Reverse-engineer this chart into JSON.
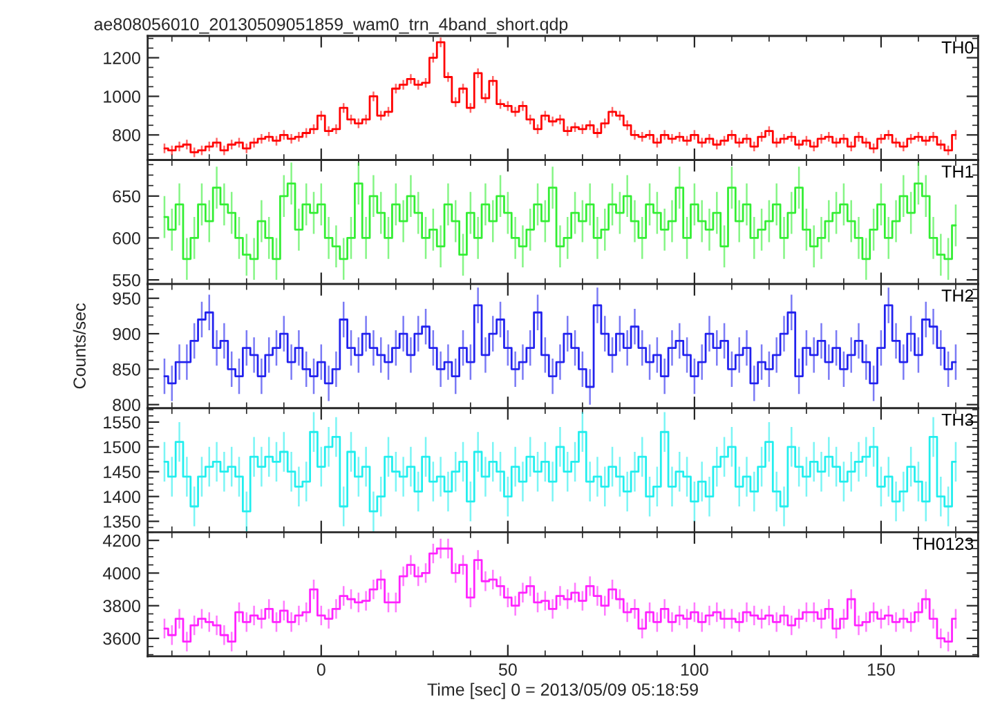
{
  "chart_data": [
    {
      "type": "step",
      "title": "ae808056010_20130509051859_wam0_trn_4band_short.qdp",
      "tick_labels": "y",
      "x": [
        -42,
        -40,
        -38,
        -36,
        -34,
        -32,
        -30,
        -28,
        -26,
        -24,
        -22,
        -20,
        -18,
        -16,
        -14,
        -12,
        -10,
        -8,
        -6,
        -4,
        -2,
        0,
        2,
        4,
        6,
        8,
        10,
        12,
        14,
        16,
        18,
        20,
        22,
        24,
        26,
        28,
        30,
        32,
        34,
        36,
        38,
        40,
        42,
        44,
        46,
        48,
        50,
        52,
        54,
        56,
        58,
        60,
        62,
        64,
        66,
        68,
        70,
        72,
        74,
        76,
        78,
        80,
        82,
        84,
        86,
        88,
        90,
        92,
        94,
        96,
        98,
        100,
        102,
        104,
        106,
        108,
        110,
        112,
        114,
        116,
        118,
        120,
        122,
        124,
        126,
        128,
        130,
        132,
        134,
        136,
        138,
        140,
        142,
        144,
        146,
        148,
        150,
        152,
        154,
        156,
        158,
        160,
        162,
        164,
        166,
        168,
        170
      ],
      "xlim": [
        -46.5,
        176
      ],
      "xticks": [
        0,
        50,
        100,
        150
      ],
      "ylim": [
        670,
        1313
      ],
      "yticks": [
        800,
        1000,
        1200
      ],
      "series": [
        {
          "name": "TH0",
          "color": "#ff0000",
          "values": [
            730,
            720,
            740,
            750,
            710,
            720,
            740,
            760,
            720,
            750,
            760,
            730,
            760,
            780,
            790,
            770,
            800,
            780,
            790,
            810,
            830,
            900,
            820,
            830,
            940,
            880,
            860,
            880,
            1000,
            900,
            920,
            1040,
            1060,
            1090,
            1060,
            1070,
            1200,
            1280,
            1100,
            970,
            1040,
            940,
            1120,
            990,
            1080,
            960,
            950,
            920,
            950,
            880,
            830,
            900,
            870,
            880,
            820,
            840,
            830,
            850,
            810,
            860,
            920,
            900,
            850,
            800,
            790,
            800,
            760,
            800,
            780,
            790,
            770,
            800,
            760,
            780,
            750,
            770,
            800,
            760,
            780,
            740,
            790,
            820,
            760,
            780,
            790,
            750,
            770,
            740,
            780,
            790,
            760,
            780,
            740,
            790,
            760,
            730,
            780,
            800,
            760,
            740,
            780,
            790,
            770,
            790,
            750,
            720,
            800
          ],
          "errors": [
            25,
            25,
            25,
            25,
            25,
            25,
            25,
            25,
            25,
            25,
            25,
            25,
            25,
            25,
            25,
            25,
            25,
            25,
            25,
            25,
            25,
            25,
            25,
            25,
            25,
            25,
            25,
            25,
            25,
            25,
            25,
            25,
            25,
            25,
            25,
            25,
            25,
            25,
            25,
            25,
            25,
            25,
            25,
            25,
            25,
            25,
            25,
            25,
            25,
            25,
            25,
            25,
            25,
            25,
            25,
            25,
            25,
            25,
            25,
            25,
            25,
            25,
            25,
            25,
            25,
            25,
            25,
            25,
            25,
            25,
            25,
            25,
            25,
            25,
            25,
            25,
            25,
            25,
            25,
            25,
            25,
            25,
            25,
            25,
            25,
            25,
            25,
            25,
            25,
            25,
            25,
            25,
            25,
            25,
            25,
            25,
            25,
            25,
            25,
            25,
            25,
            25,
            25,
            25,
            25,
            25,
            25
          ]
        }
      ]
    },
    {
      "type": "step",
      "tick_labels": "y",
      "x": [
        -42,
        -40,
        -38,
        -36,
        -34,
        -32,
        -30,
        -28,
        -26,
        -24,
        -22,
        -20,
        -18,
        -16,
        -14,
        -12,
        -10,
        -8,
        -6,
        -4,
        -2,
        0,
        2,
        4,
        6,
        8,
        10,
        12,
        14,
        16,
        18,
        20,
        22,
        24,
        26,
        28,
        30,
        32,
        34,
        36,
        38,
        40,
        42,
        44,
        46,
        48,
        50,
        52,
        54,
        56,
        58,
        60,
        62,
        64,
        66,
        68,
        70,
        72,
        74,
        76,
        78,
        80,
        82,
        84,
        86,
        88,
        90,
        92,
        94,
        96,
        98,
        100,
        102,
        104,
        106,
        108,
        110,
        112,
        114,
        116,
        118,
        120,
        122,
        124,
        126,
        128,
        130,
        132,
        134,
        136,
        138,
        140,
        142,
        144,
        146,
        148,
        150,
        152,
        154,
        156,
        158,
        160,
        162,
        164,
        166,
        168,
        170
      ],
      "xlim": [
        -46.5,
        176
      ],
      "xticks": [
        0,
        50,
        100,
        150
      ],
      "ylim": [
        545,
        693
      ],
      "yticks": [
        550,
        600,
        650
      ],
      "series": [
        {
          "name": "TH1",
          "color": "#33ee33",
          "values": [
            625,
            610,
            640,
            575,
            600,
            640,
            620,
            660,
            640,
            630,
            600,
            580,
            575,
            620,
            600,
            575,
            650,
            665,
            610,
            640,
            630,
            640,
            600,
            590,
            575,
            600,
            665,
            600,
            650,
            630,
            600,
            640,
            620,
            650,
            630,
            600,
            610,
            590,
            640,
            620,
            580,
            630,
            600,
            640,
            620,
            650,
            630,
            600,
            590,
            610,
            640,
            620,
            660,
            590,
            600,
            630,
            620,
            640,
            600,
            610,
            640,
            630,
            650,
            620,
            600,
            640,
            630,
            610,
            620,
            660,
            600,
            640,
            620,
            610,
            630,
            590,
            660,
            620,
            640,
            600,
            610,
            620,
            640,
            600,
            630,
            660,
            610,
            590,
            600,
            620,
            630,
            640,
            620,
            600,
            575,
            610,
            640,
            600,
            620,
            650,
            630,
            665,
            650,
            600,
            580,
            575,
            615
          ],
          "errors": [
            25,
            25,
            25,
            25,
            25,
            25,
            25,
            25,
            25,
            25,
            25,
            25,
            25,
            25,
            25,
            25,
            25,
            25,
            25,
            25,
            25,
            25,
            25,
            25,
            25,
            25,
            25,
            25,
            25,
            25,
            25,
            25,
            25,
            25,
            25,
            25,
            25,
            25,
            25,
            25,
            25,
            25,
            25,
            25,
            25,
            25,
            25,
            25,
            25,
            25,
            25,
            25,
            25,
            25,
            25,
            25,
            25,
            25,
            25,
            25,
            25,
            25,
            25,
            25,
            25,
            25,
            25,
            25,
            25,
            25,
            25,
            25,
            25,
            25,
            25,
            25,
            25,
            25,
            25,
            25,
            25,
            25,
            25,
            25,
            25,
            25,
            25,
            25,
            25,
            25,
            25,
            25,
            25,
            25,
            25,
            25,
            25,
            25,
            25,
            25,
            25,
            25,
            25,
            25,
            25,
            25,
            25
          ]
        }
      ]
    },
    {
      "type": "step",
      "tick_labels": "y",
      "ylabel": "Counts/sec",
      "x": [
        -42,
        -40,
        -38,
        -36,
        -34,
        -32,
        -30,
        -28,
        -26,
        -24,
        -22,
        -20,
        -18,
        -16,
        -14,
        -12,
        -10,
        -8,
        -6,
        -4,
        -2,
        0,
        2,
        4,
        6,
        8,
        10,
        12,
        14,
        16,
        18,
        20,
        22,
        24,
        26,
        28,
        30,
        32,
        34,
        36,
        38,
        40,
        42,
        44,
        46,
        48,
        50,
        52,
        54,
        56,
        58,
        60,
        62,
        64,
        66,
        68,
        70,
        72,
        74,
        76,
        78,
        80,
        82,
        84,
        86,
        88,
        90,
        92,
        94,
        96,
        98,
        100,
        102,
        104,
        106,
        108,
        110,
        112,
        114,
        116,
        118,
        120,
        122,
        124,
        126,
        128,
        130,
        132,
        134,
        136,
        138,
        140,
        142,
        144,
        146,
        148,
        150,
        152,
        154,
        156,
        158,
        160,
        162,
        164,
        166,
        168,
        170
      ],
      "xlim": [
        -46.5,
        176
      ],
      "xticks": [
        0,
        50,
        100,
        150
      ],
      "ylim": [
        795,
        970
      ],
      "yticks": [
        800,
        850,
        900,
        950
      ],
      "series": [
        {
          "name": "TH2",
          "color": "#2222ee",
          "values": [
            840,
            830,
            860,
            860,
            890,
            920,
            930,
            880,
            890,
            850,
            840,
            880,
            870,
            840,
            870,
            880,
            900,
            860,
            880,
            850,
            840,
            860,
            830,
            850,
            920,
            880,
            870,
            900,
            880,
            870,
            860,
            880,
            900,
            870,
            900,
            910,
            880,
            850,
            860,
            840,
            880,
            860,
            940,
            870,
            900,
            920,
            880,
            850,
            860,
            880,
            930,
            870,
            840,
            860,
            900,
            880,
            850,
            825,
            940,
            900,
            870,
            900,
            880,
            910,
            880,
            860,
            870,
            840,
            880,
            890,
            870,
            840,
            860,
            900,
            880,
            890,
            850,
            870,
            880,
            830,
            860,
            850,
            870,
            900,
            930,
            840,
            880,
            870,
            890,
            860,
            880,
            850,
            870,
            890,
            860,
            830,
            880,
            940,
            890,
            860,
            900,
            870,
            920,
            910,
            880,
            850,
            860
          ],
          "errors": [
            25,
            25,
            25,
            25,
            25,
            25,
            25,
            25,
            25,
            25,
            25,
            25,
            25,
            25,
            25,
            25,
            25,
            25,
            25,
            25,
            25,
            25,
            25,
            25,
            25,
            25,
            25,
            25,
            25,
            25,
            25,
            25,
            25,
            25,
            25,
            25,
            25,
            25,
            25,
            25,
            25,
            25,
            25,
            25,
            25,
            25,
            25,
            25,
            25,
            25,
            25,
            25,
            25,
            25,
            25,
            25,
            25,
            25,
            25,
            25,
            25,
            25,
            25,
            25,
            25,
            25,
            25,
            25,
            25,
            25,
            25,
            25,
            25,
            25,
            25,
            25,
            25,
            25,
            25,
            25,
            25,
            25,
            25,
            25,
            25,
            25,
            25,
            25,
            25,
            25,
            25,
            25,
            25,
            25,
            25,
            25,
            25,
            25,
            25,
            25,
            25,
            25,
            25,
            25,
            25,
            25,
            25
          ]
        }
      ]
    },
    {
      "type": "step",
      "tick_labels": "y",
      "x": [
        -42,
        -40,
        -38,
        -36,
        -34,
        -32,
        -30,
        -28,
        -26,
        -24,
        -22,
        -20,
        -18,
        -16,
        -14,
        -12,
        -10,
        -8,
        -6,
        -4,
        -2,
        0,
        2,
        4,
        6,
        8,
        10,
        12,
        14,
        16,
        18,
        20,
        22,
        24,
        26,
        28,
        30,
        32,
        34,
        36,
        38,
        40,
        42,
        44,
        46,
        48,
        50,
        52,
        54,
        56,
        58,
        60,
        62,
        64,
        66,
        68,
        70,
        72,
        74,
        76,
        78,
        80,
        82,
        84,
        86,
        88,
        90,
        92,
        94,
        96,
        98,
        100,
        102,
        104,
        106,
        108,
        110,
        112,
        114,
        116,
        118,
        120,
        122,
        124,
        126,
        128,
        130,
        132,
        134,
        136,
        138,
        140,
        142,
        144,
        146,
        148,
        150,
        152,
        154,
        156,
        158,
        160,
        162,
        164,
        166,
        168,
        170
      ],
      "xlim": [
        -46.5,
        176
      ],
      "xticks": [
        0,
        50,
        100,
        150
      ],
      "ylim": [
        1328,
        1578
      ],
      "yticks": [
        1350,
        1400,
        1450,
        1500,
        1550
      ],
      "series": [
        {
          "name": "TH3",
          "color": "#22eeee",
          "values": [
            1470,
            1440,
            1510,
            1440,
            1380,
            1440,
            1460,
            1470,
            1450,
            1460,
            1440,
            1370,
            1480,
            1460,
            1480,
            1470,
            1490,
            1450,
            1420,
            1430,
            1530,
            1460,
            1500,
            1520,
            1380,
            1490,
            1440,
            1460,
            1370,
            1400,
            1480,
            1450,
            1440,
            1460,
            1410,
            1480,
            1430,
            1440,
            1410,
            1450,
            1470,
            1390,
            1490,
            1440,
            1470,
            1450,
            1400,
            1460,
            1430,
            1480,
            1450,
            1470,
            1430,
            1500,
            1450,
            1470,
            1530,
            1430,
            1440,
            1420,
            1460,
            1440,
            1410,
            1450,
            1480,
            1400,
            1420,
            1530,
            1420,
            1450,
            1440,
            1390,
            1430,
            1400,
            1460,
            1480,
            1500,
            1420,
            1440,
            1410,
            1460,
            1510,
            1410,
            1380,
            1500,
            1460,
            1440,
            1470,
            1450,
            1480,
            1460,
            1430,
            1450,
            1470,
            1480,
            1500,
            1420,
            1440,
            1390,
            1410,
            1460,
            1430,
            1390,
            1520,
            1400,
            1380,
            1470
          ],
          "errors": [
            40,
            40,
            40,
            40,
            40,
            40,
            40,
            40,
            40,
            40,
            40,
            40,
            40,
            40,
            40,
            40,
            40,
            40,
            40,
            40,
            40,
            40,
            40,
            40,
            40,
            40,
            40,
            40,
            40,
            40,
            40,
            40,
            40,
            40,
            40,
            40,
            40,
            40,
            40,
            40,
            40,
            40,
            40,
            40,
            40,
            40,
            40,
            40,
            40,
            40,
            40,
            40,
            40,
            40,
            40,
            40,
            40,
            40,
            40,
            40,
            40,
            40,
            40,
            40,
            40,
            40,
            40,
            40,
            40,
            40,
            40,
            40,
            40,
            40,
            40,
            40,
            40,
            40,
            40,
            40,
            40,
            40,
            40,
            40,
            40,
            40,
            40,
            40,
            40,
            40,
            40,
            40,
            40,
            40,
            40,
            40,
            40,
            40,
            40,
            40,
            40,
            40,
            40,
            40,
            40,
            40,
            40
          ]
        }
      ]
    },
    {
      "type": "step",
      "xlabel": "Time [sec] 0 = 2013/05/09 05:18:59",
      "x": [
        -42,
        -40,
        -38,
        -36,
        -34,
        -32,
        -30,
        -28,
        -26,
        -24,
        -22,
        -20,
        -18,
        -16,
        -14,
        -12,
        -10,
        -8,
        -6,
        -4,
        -2,
        0,
        2,
        4,
        6,
        8,
        10,
        12,
        14,
        16,
        18,
        20,
        22,
        24,
        26,
        28,
        30,
        32,
        34,
        36,
        38,
        40,
        42,
        44,
        46,
        48,
        50,
        52,
        54,
        56,
        58,
        60,
        62,
        64,
        66,
        68,
        70,
        72,
        74,
        76,
        78,
        80,
        82,
        84,
        86,
        88,
        90,
        92,
        94,
        96,
        98,
        100,
        102,
        104,
        106,
        108,
        110,
        112,
        114,
        116,
        118,
        120,
        122,
        124,
        126,
        128,
        130,
        132,
        134,
        136,
        138,
        140,
        142,
        144,
        146,
        148,
        150,
        152,
        154,
        156,
        158,
        160,
        162,
        164,
        166,
        168,
        170
      ],
      "xlim": [
        -46.5,
        176
      ],
      "xticks": [
        0,
        50,
        100,
        150
      ],
      "ylim": [
        3490,
        4250
      ],
      "yticks": [
        3600,
        3800,
        4000,
        4200
      ],
      "series": [
        {
          "name": "TH0123",
          "color": "#ff22ff",
          "values": [
            3660,
            3620,
            3720,
            3580,
            3680,
            3720,
            3700,
            3680,
            3620,
            3580,
            3760,
            3700,
            3740,
            3720,
            3780,
            3700,
            3770,
            3700,
            3740,
            3760,
            3900,
            3740,
            3720,
            3780,
            3860,
            3840,
            3820,
            3830,
            3900,
            3960,
            3820,
            3820,
            3980,
            4050,
            3980,
            4000,
            4120,
            4150,
            4150,
            4000,
            4050,
            3850,
            4080,
            3950,
            3960,
            3920,
            3850,
            3800,
            3880,
            3920,
            3820,
            3830,
            3780,
            3860,
            3840,
            3880,
            3830,
            3920,
            3860,
            3800,
            3900,
            3840,
            3760,
            3780,
            3660,
            3760,
            3700,
            3780,
            3700,
            3740,
            3720,
            3760,
            3700,
            3740,
            3760,
            3720,
            3720,
            3700,
            3760,
            3740,
            3720,
            3740,
            3700,
            3740,
            3680,
            3720,
            3760,
            3760,
            3720,
            3780,
            3660,
            3720,
            3840,
            3680,
            3700,
            3760,
            3720,
            3740,
            3700,
            3720,
            3700,
            3760,
            3840,
            3720,
            3600,
            3580,
            3720
          ],
          "errors": [
            60,
            60,
            60,
            60,
            60,
            60,
            60,
            60,
            60,
            60,
            60,
            60,
            60,
            60,
            60,
            60,
            60,
            60,
            60,
            60,
            60,
            60,
            60,
            60,
            60,
            60,
            60,
            60,
            60,
            60,
            60,
            60,
            60,
            60,
            60,
            60,
            60,
            60,
            60,
            60,
            60,
            60,
            60,
            60,
            60,
            60,
            60,
            60,
            60,
            60,
            60,
            60,
            60,
            60,
            60,
            60,
            60,
            60,
            60,
            60,
            60,
            60,
            60,
            60,
            60,
            60,
            60,
            60,
            60,
            60,
            60,
            60,
            60,
            60,
            60,
            60,
            60,
            60,
            60,
            60,
            60,
            60,
            60,
            60,
            60,
            60,
            60,
            60,
            60,
            60,
            60,
            60,
            60,
            60,
            60,
            60,
            60,
            60,
            60,
            60,
            60,
            60,
            60,
            60,
            60,
            60,
            60
          ]
        }
      ]
    }
  ]
}
